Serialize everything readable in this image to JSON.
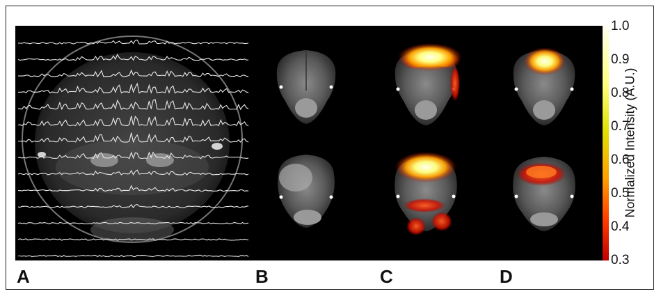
{
  "panels": {
    "a": "A",
    "b": "B",
    "c": "C",
    "d": "D"
  },
  "colorbar": {
    "title": "Normalized Intensity (A.U.)",
    "ticks": [
      "1.0",
      "0.9",
      "0.8",
      "0.7",
      "0.6",
      "0.5",
      "0.4",
      "0.3"
    ],
    "colors": [
      "#fffff0",
      "#ffff80",
      "#e0e000",
      "#ffa000",
      "#ff4000",
      "#c00000"
    ]
  },
  "images": {
    "a": "brain-mri-with-mrs-spectra-grid",
    "b": "brain-mri-slices-no-overlay",
    "c": "brain-mri-slices-hot-overlay",
    "d": "brain-mri-slices-hot-overlay-small"
  }
}
